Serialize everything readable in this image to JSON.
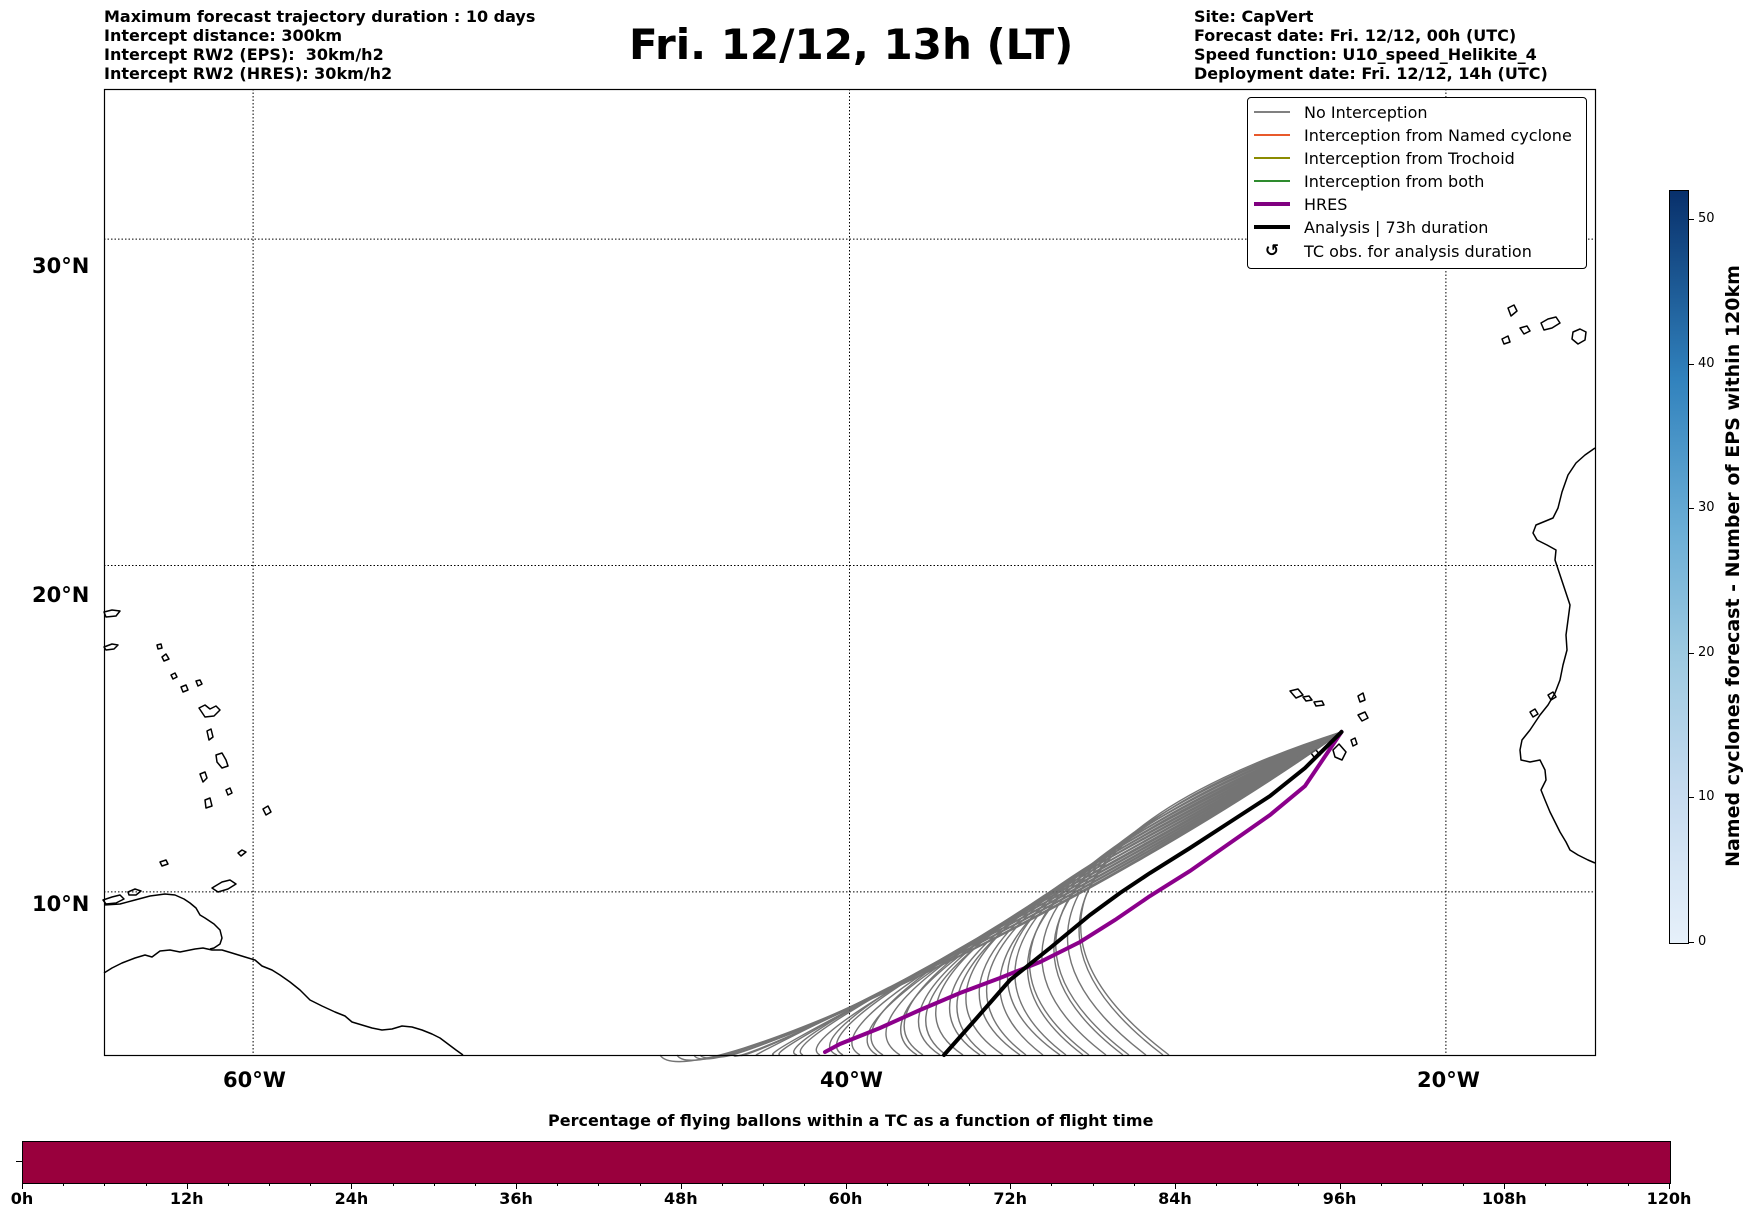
{
  "header": {
    "left_lines": [
      "Maximum forecast trajectory duration : 10 days",
      "Intercept distance: 300km",
      "Intercept RW2 (EPS):  30km/h2",
      "Intercept RW2 (HRES): 30km/h2"
    ],
    "title": "Fri. 12/12, 13h (LT)",
    "right_lines": [
      "Site: CapVert",
      "Forecast date: Fri. 12/12, 00h (UTC)",
      "Speed function: U10_speed_Helikite_4",
      "Deployment date: Fri. 12/12, 14h (UTC)"
    ]
  },
  "map": {
    "extent": {
      "lon_min": -65,
      "lon_max": -15,
      "lat_min": 5,
      "lat_max": 34.6
    },
    "lat_ticks": [
      {
        "value": 30,
        "label": "30°N"
      },
      {
        "value": 20,
        "label": "20°N"
      },
      {
        "value": 10,
        "label": "10°N"
      }
    ],
    "lon_ticks": [
      {
        "value": -60,
        "label": "60°W"
      },
      {
        "value": -40,
        "label": "40°W"
      },
      {
        "value": -20,
        "label": "20°W"
      }
    ],
    "launch_site": {
      "lon": -23.5,
      "lat": 14.9
    },
    "colors": {
      "eps": "#666666",
      "hres": "#8b008b",
      "analysis": "#000000",
      "coast": "#000000"
    }
  },
  "legend": {
    "items": [
      {
        "label": "No Interception",
        "color": "#808080",
        "kind": "thin"
      },
      {
        "label": "Interception from Named cyclone",
        "color": "#e8592b",
        "kind": "thin"
      },
      {
        "label": "Interception from Trochoid",
        "color": "#8b8b00",
        "kind": "thin"
      },
      {
        "label": "Interception from both",
        "color": "#2e8b2e",
        "kind": "thin"
      },
      {
        "label": "HRES",
        "color": "#800080",
        "kind": "thick"
      },
      {
        "label": "Analysis | 73h duration",
        "color": "#000000",
        "kind": "thick"
      },
      {
        "label": "TC obs. for analysis duration",
        "color": "#000000",
        "kind": "symbol",
        "symbol": "↺"
      }
    ]
  },
  "colorbar_right": {
    "label": "Named cyclones forecast - Number of EPS within 120km",
    "min": 0,
    "max": 52,
    "ticks": [
      "0",
      "10",
      "20",
      "30",
      "40",
      "50"
    ],
    "color_low": "#e6f0fa",
    "color_high": "#08306b"
  },
  "bottom_bar": {
    "title": "Percentage of flying ballons within a TC as a function of flight time",
    "fill_color": "#99003d",
    "max_hours": 120,
    "ticks": [
      "0h",
      "12h",
      "24h",
      "36h",
      "48h",
      "60h",
      "72h",
      "84h",
      "96h",
      "108h",
      "120h"
    ]
  }
}
